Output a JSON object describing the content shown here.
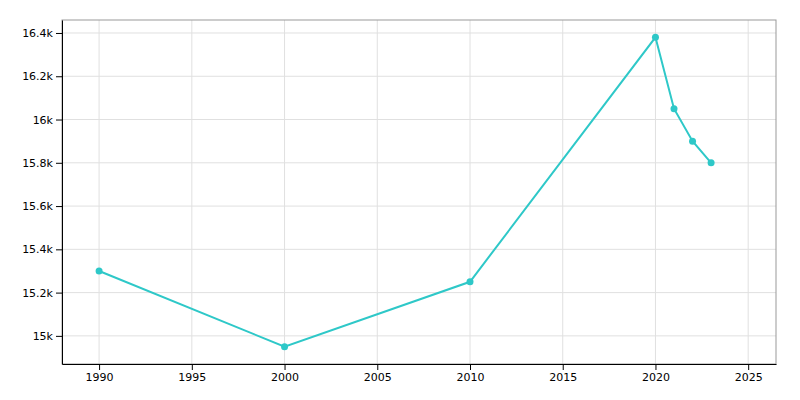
{
  "chart_data": {
    "type": "line",
    "x": [
      1990,
      2000,
      2010,
      2020,
      2021,
      2022,
      2023
    ],
    "values": [
      15300,
      14950,
      15250,
      16380,
      16050,
      15900,
      15800
    ],
    "color": "#2ec8c8",
    "marker": "circle",
    "line_style": "solid",
    "xlim": [
      1988,
      2026.5
    ],
    "ylim": [
      14870,
      16460
    ],
    "xticks": [
      1990,
      1995,
      2000,
      2005,
      2010,
      2015,
      2020,
      2025
    ],
    "yticks": [
      {
        "value": 15000,
        "label": "15k"
      },
      {
        "value": 15200,
        "label": "15.2k"
      },
      {
        "value": 15400,
        "label": "15.4k"
      },
      {
        "value": 15600,
        "label": "15.6k"
      },
      {
        "value": 15800,
        "label": "15.8k"
      },
      {
        "value": 16000,
        "label": "16k"
      },
      {
        "value": 16200,
        "label": "16.2k"
      },
      {
        "value": 16400,
        "label": "16.4k"
      }
    ],
    "grid": true
  }
}
